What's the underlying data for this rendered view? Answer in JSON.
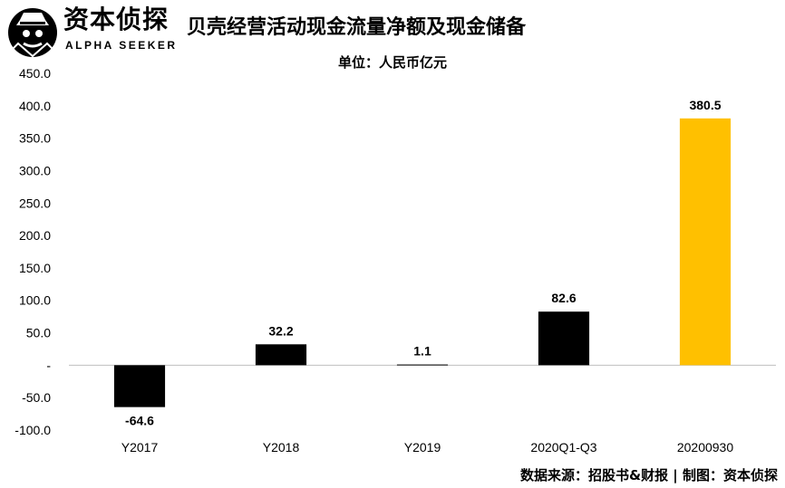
{
  "brand": {
    "name": "资本侦探",
    "subtitle": "ALPHA SEEKER"
  },
  "source_note": "数据来源：招股书&财报 | 制图：资本侦探",
  "colors": {
    "default_bar": "#000000",
    "highlight_bar": "#FFC000"
  },
  "chart_data": {
    "type": "bar",
    "title": "贝壳经营活动现金流量净额及现金储备",
    "subtitle": "单位：人民币亿元",
    "categories": [
      "Y2017",
      "Y2018",
      "Y2019",
      "2020Q1-Q3",
      "20200930"
    ],
    "values": [
      -64.6,
      32.2,
      1.1,
      82.6,
      380.5
    ],
    "data_labels": [
      "-64.6",
      "32.2",
      "1.1",
      "82.6",
      "380.5"
    ],
    "bar_colors": [
      "#000000",
      "#000000",
      "#000000",
      "#000000",
      "#FFC000"
    ],
    "ylim": [
      -100,
      450
    ],
    "yticks": [
      -100,
      -50,
      0,
      50,
      100,
      150,
      200,
      250,
      300,
      350,
      400,
      450
    ],
    "ytick_labels": [
      "-100.0",
      "-50.0",
      "-",
      "50.0",
      "100.0",
      "150.0",
      "200.0",
      "250.0",
      "300.0",
      "350.0",
      "400.0",
      "450.0"
    ],
    "grid": false,
    "xlabel": "",
    "ylabel": ""
  }
}
